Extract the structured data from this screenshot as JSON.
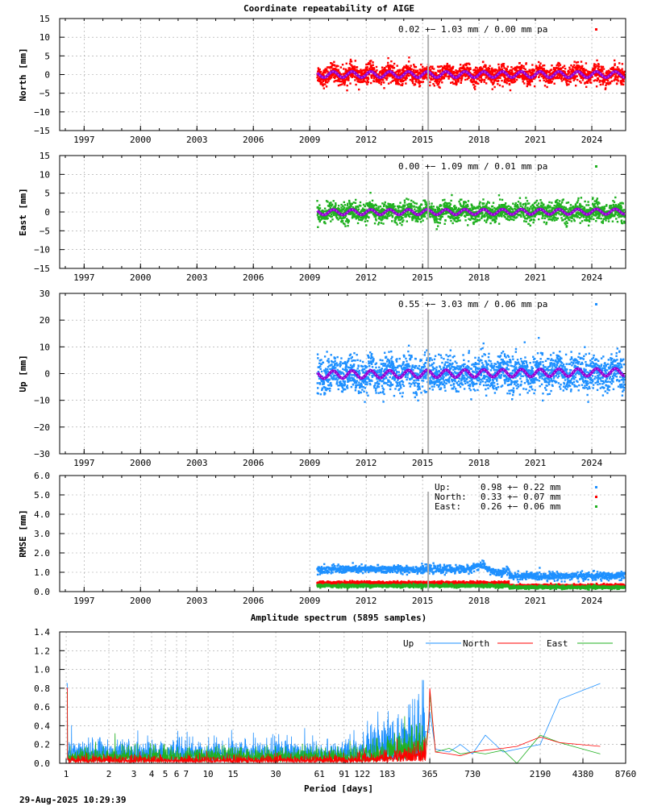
{
  "figure": {
    "title": "Coordinate repeatability of AIGE",
    "timestamp": "29-Aug-2025 10:29:39"
  },
  "colors": {
    "up": "#1e90ff",
    "north": "#ff0000",
    "east": "#20b020",
    "model": "#9400d3",
    "event_line": "#b0b0b0"
  },
  "chart_data": [
    {
      "type": "scatter",
      "name": "north",
      "ylabel": "North [mm]",
      "ylim": [
        -15,
        15
      ],
      "yticks": [
        "15",
        "10",
        "5",
        "0",
        "−5",
        "−10",
        "−15"
      ],
      "ytick_values": [
        15,
        10,
        5,
        0,
        -5,
        -10,
        -15
      ],
      "xlim": [
        1995.7,
        2025.8
      ],
      "xticks": [
        "1997",
        "2000",
        "2003",
        "2006",
        "2009",
        "2012",
        "2015",
        "2018",
        "2021",
        "2024"
      ],
      "xtick_values": [
        1997,
        2000,
        2003,
        2006,
        2009,
        2012,
        2015,
        2018,
        2021,
        2024
      ],
      "data_span": [
        2009.4,
        2025.75
      ],
      "event_line_x": 2015.3,
      "scatter_sd": 1.2,
      "seasonal_amp": 0.8,
      "trend_mm_per_year": 0.0,
      "stat_text": "0.02 +− 1.03 mm /  0.00 mm pa",
      "grid": true
    },
    {
      "type": "scatter",
      "name": "east",
      "ylabel": "East [mm]",
      "ylim": [
        -15,
        15
      ],
      "yticks": [
        "15",
        "10",
        "5",
        "0",
        "−5",
        "−10",
        "−15"
      ],
      "ytick_values": [
        15,
        10,
        5,
        0,
        -5,
        -10,
        -15
      ],
      "xlim": [
        1995.7,
        2025.8
      ],
      "xticks": [
        "1997",
        "2000",
        "2003",
        "2006",
        "2009",
        "2012",
        "2015",
        "2018",
        "2021",
        "2024"
      ],
      "xtick_values": [
        1997,
        2000,
        2003,
        2006,
        2009,
        2012,
        2015,
        2018,
        2021,
        2024
      ],
      "data_span": [
        2009.4,
        2025.75
      ],
      "event_line_x": 2015.3,
      "scatter_sd": 1.25,
      "seasonal_amp": 0.7,
      "trend_mm_per_year": 0.01,
      "stat_text": "0.00 +− 1.09 mm /  0.01 mm pa",
      "grid": true
    },
    {
      "type": "scatter",
      "name": "up",
      "ylabel": "Up [mm]",
      "ylim": [
        -30,
        30
      ],
      "yticks": [
        "30",
        "20",
        "10",
        "0",
        "−10",
        "−20",
        "−30"
      ],
      "ytick_values": [
        30,
        20,
        10,
        0,
        -10,
        -20,
        -30
      ],
      "xlim": [
        1995.7,
        2025.8
      ],
      "xticks": [
        "1997",
        "2000",
        "2003",
        "2006",
        "2009",
        "2012",
        "2015",
        "2018",
        "2021",
        "2024"
      ],
      "xtick_values": [
        1997,
        2000,
        2003,
        2006,
        2009,
        2012,
        2015,
        2018,
        2021,
        2024
      ],
      "data_span": [
        2009.4,
        2025.75
      ],
      "event_line_x": 2015.3,
      "scatter_sd": 3.3,
      "seasonal_amp": 1.4,
      "trend_mm_per_year": 0.06,
      "stat_text": "0.55 +− 3.03 mm /  0.06 mm pa",
      "grid": true
    },
    {
      "type": "scatter",
      "name": "rmse",
      "ylabel": "RMSE [mm]",
      "ylim": [
        0,
        6
      ],
      "yticks": [
        "6.0",
        "5.0",
        "4.0",
        "3.0",
        "2.0",
        "1.0",
        "0.0"
      ],
      "ytick_values": [
        6,
        5,
        4,
        3,
        2,
        1,
        0
      ],
      "xlim": [
        1995.7,
        2025.8
      ],
      "xticks": [
        "1997",
        "2000",
        "2003",
        "2006",
        "2009",
        "2012",
        "2015",
        "2018",
        "2021",
        "2024"
      ],
      "xtick_values": [
        1997,
        2000,
        2003,
        2006,
        2009,
        2012,
        2015,
        2018,
        2021,
        2024
      ],
      "data_span": [
        2009.4,
        2025.75
      ],
      "event_line_x": 2015.3,
      "legend": [
        {
          "key": "Up:",
          "value": "0.98 +− 0.22 mm",
          "color_key": "up"
        },
        {
          "key": "North:",
          "value": "0.33 +− 0.07 mm",
          "color_key": "north"
        },
        {
          "key": "East:",
          "value": "0.26 +− 0.06 mm",
          "color_key": "east"
        }
      ],
      "series_levels": {
        "up": {
          "before_2019_6": 1.15,
          "after_2019_6": 0.8
        },
        "north": {
          "before_2019_6": 0.45,
          "after_2019_6": 0.3
        },
        "east": {
          "before_2019_6": 0.3,
          "after_2019_6": 0.22
        }
      },
      "grid": true
    },
    {
      "type": "line",
      "name": "spectrum",
      "title": "Amplitude spectrum (5895 samples)",
      "xlabel": "Period [days]",
      "xscale": "log",
      "xlim": [
        0.9,
        8760
      ],
      "ylim": [
        0,
        1.4
      ],
      "yticks": [
        "1.4",
        "1.2",
        "1.0",
        "0.8",
        "0.6",
        "0.4",
        "0.2",
        "0.0"
      ],
      "ytick_values": [
        1.4,
        1.2,
        1.0,
        0.8,
        0.6,
        0.4,
        0.2,
        0.0
      ],
      "xticks": [
        "1",
        "2",
        "3",
        "4",
        "5",
        "6",
        "7",
        "10",
        "15",
        "30",
        "61",
        "91",
        "122",
        "183",
        "365",
        "730",
        "2190",
        "4380",
        "8760"
      ],
      "xtick_values": [
        1,
        2,
        3,
        4,
        5,
        6,
        7,
        10,
        15,
        30,
        61,
        91,
        122,
        183,
        365,
        730,
        2190,
        4380,
        8760
      ],
      "legend": [
        "Up",
        "North",
        "East"
      ],
      "legend_position": "top-right",
      "series": [
        {
          "name": "Up",
          "color_key": "up",
          "tail_x": [
            365,
            400,
            500,
            600,
            730,
            900,
            1200,
            1500,
            2190,
            3000,
            5800
          ],
          "tail_y": [
            0.55,
            0.15,
            0.12,
            0.2,
            0.1,
            0.3,
            0.12,
            0.15,
            0.2,
            0.68,
            0.85
          ],
          "peak_365": 0.55,
          "noise_level": 0.12
        },
        {
          "name": "North",
          "color_key": "north",
          "tail_x": [
            365,
            400,
            500,
            600,
            730,
            900,
            1200,
            1500,
            2190,
            3000,
            5800
          ],
          "tail_y": [
            0.8,
            0.12,
            0.1,
            0.08,
            0.12,
            0.14,
            0.16,
            0.18,
            0.28,
            0.22,
            0.18
          ],
          "peak_365": 0.8,
          "noise_level": 0.04
        },
        {
          "name": "East",
          "color_key": "east",
          "tail_x": [
            365,
            400,
            500,
            600,
            730,
            900,
            1200,
            1500,
            2190,
            3000,
            5800
          ],
          "tail_y": [
            0.75,
            0.12,
            0.16,
            0.1,
            0.12,
            0.1,
            0.14,
            0.0,
            0.3,
            0.22,
            0.1
          ],
          "peak_365": 0.75,
          "noise_level": 0.08
        }
      ],
      "grid": true
    }
  ]
}
